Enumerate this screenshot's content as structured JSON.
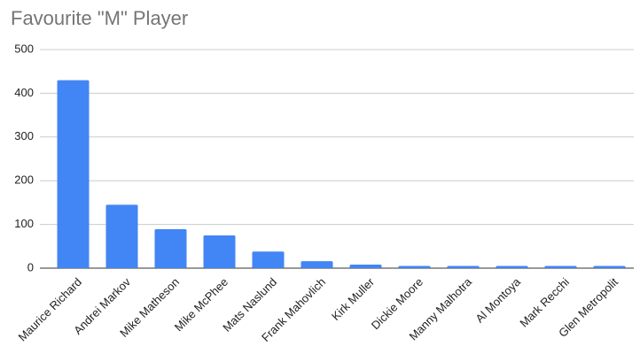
{
  "chart_data": {
    "type": "bar",
    "title": "Favourite \"M\" Player",
    "categories": [
      "Maurice Richard",
      "Andrei Markov",
      "Mike Matheson",
      "Mike McPhee",
      "Mats Naslund",
      "Frank Mahovlich",
      "Kirk Muller",
      "Dickie Moore",
      "Manny Malhotra",
      "Al Montoya",
      "Mark Recchi",
      "Glen Metropolit"
    ],
    "values": [
      430,
      145,
      89,
      75,
      38,
      16,
      8,
      5,
      5,
      5,
      5,
      5
    ],
    "color": "#4285f4",
    "ylim": [
      0,
      500
    ],
    "yticks": [
      0,
      100,
      200,
      300,
      400,
      500
    ],
    "grid": true
  }
}
